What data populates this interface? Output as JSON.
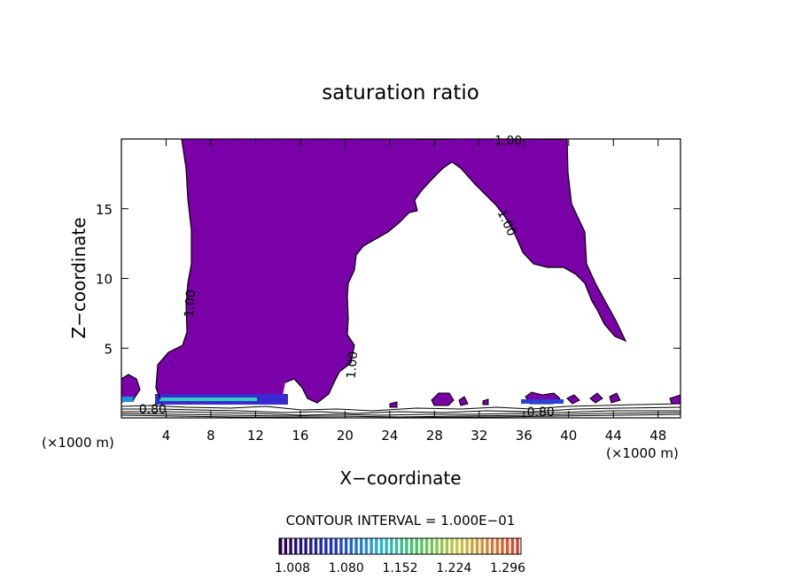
{
  "chart_data": {
    "type": "heatmap",
    "title": "saturation ratio",
    "xlabel": "X−coordinate",
    "ylabel": "Z−coordinate",
    "x_unit_left": "(×1000 m)",
    "x_unit_right": "(×1000 m)",
    "xlim": [
      0,
      50
    ],
    "ylim": [
      0,
      20
    ],
    "x_ticks": [
      4,
      8,
      12,
      16,
      20,
      24,
      28,
      32,
      36,
      40,
      44,
      48
    ],
    "x_tick_labels": [
      "4",
      "8",
      "12",
      "16",
      "20",
      "24",
      "28",
      "32",
      "36",
      "40",
      "44",
      "48"
    ],
    "y_ticks": [
      5,
      10,
      15
    ],
    "y_tick_labels": [
      "5",
      "10",
      "15"
    ],
    "contour_interval": "CONTOUR INTERVAL = 1.000E−01",
    "contour_labels": [
      {
        "text": "1.00",
        "x": 34.6,
        "y": 19.9,
        "rotate": 0
      },
      {
        "text": "1.00",
        "x": 34.5,
        "y": 14.0,
        "rotate": 65
      },
      {
        "text": "1.00",
        "x": 6.1,
        "y": 8.2,
        "rotate": -85
      },
      {
        "text": "1.00",
        "x": 20.6,
        "y": 3.8,
        "rotate": -85
      },
      {
        "text": "0.80",
        "x": 2.8,
        "y": 0.65,
        "rotate": 0
      },
      {
        "text": "0.80",
        "x": 37.5,
        "y": 0.45,
        "rotate": 0
      }
    ],
    "colorbar": {
      "tick_labels": [
        "1.008",
        "1.080",
        "1.152",
        "1.224",
        "1.296"
      ],
      "min": 1.008,
      "max": 1.296
    },
    "colors": {
      "fill": "#7a00a8",
      "contour": "#000000"
    }
  }
}
